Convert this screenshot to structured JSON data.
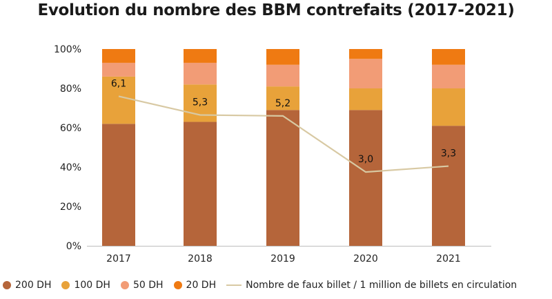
{
  "chart_data": {
    "type": "bar",
    "stacked": true,
    "title": "Evolution du nombre des BBM contrefaits (2017-2021)",
    "categories": [
      "2017",
      "2018",
      "2019",
      "2020",
      "2021"
    ],
    "yticks": [
      "0%",
      "20%",
      "40%",
      "60%",
      "80%",
      "100%"
    ],
    "ylim": [
      0,
      100
    ],
    "series": [
      {
        "name": "200 DH",
        "color": "#b5653a",
        "values": [
          62,
          63,
          69,
          69,
          61
        ]
      },
      {
        "name": "100 DH",
        "color": "#e8a23a",
        "values": [
          24,
          19,
          12,
          11,
          19
        ]
      },
      {
        "name": "50 DH",
        "color": "#f29c76",
        "values": [
          7,
          11,
          11,
          15,
          12
        ]
      },
      {
        "name": "20 DH",
        "color": "#ef7a12",
        "values": [
          7,
          7,
          8,
          5,
          8
        ]
      }
    ],
    "line": {
      "name": "Nombre de faux billet / 1 million de billets en circulation",
      "color": "#d8c9a3",
      "values": [
        6.1,
        5.3,
        5.2,
        3.0,
        3.3
      ],
      "labels": [
        "6,1",
        "5,3",
        "5,2",
        "3,0",
        "3,3"
      ],
      "plot_percent": [
        76,
        66.5,
        66,
        37.5,
        40.5
      ]
    },
    "legend_position": "bottom"
  }
}
